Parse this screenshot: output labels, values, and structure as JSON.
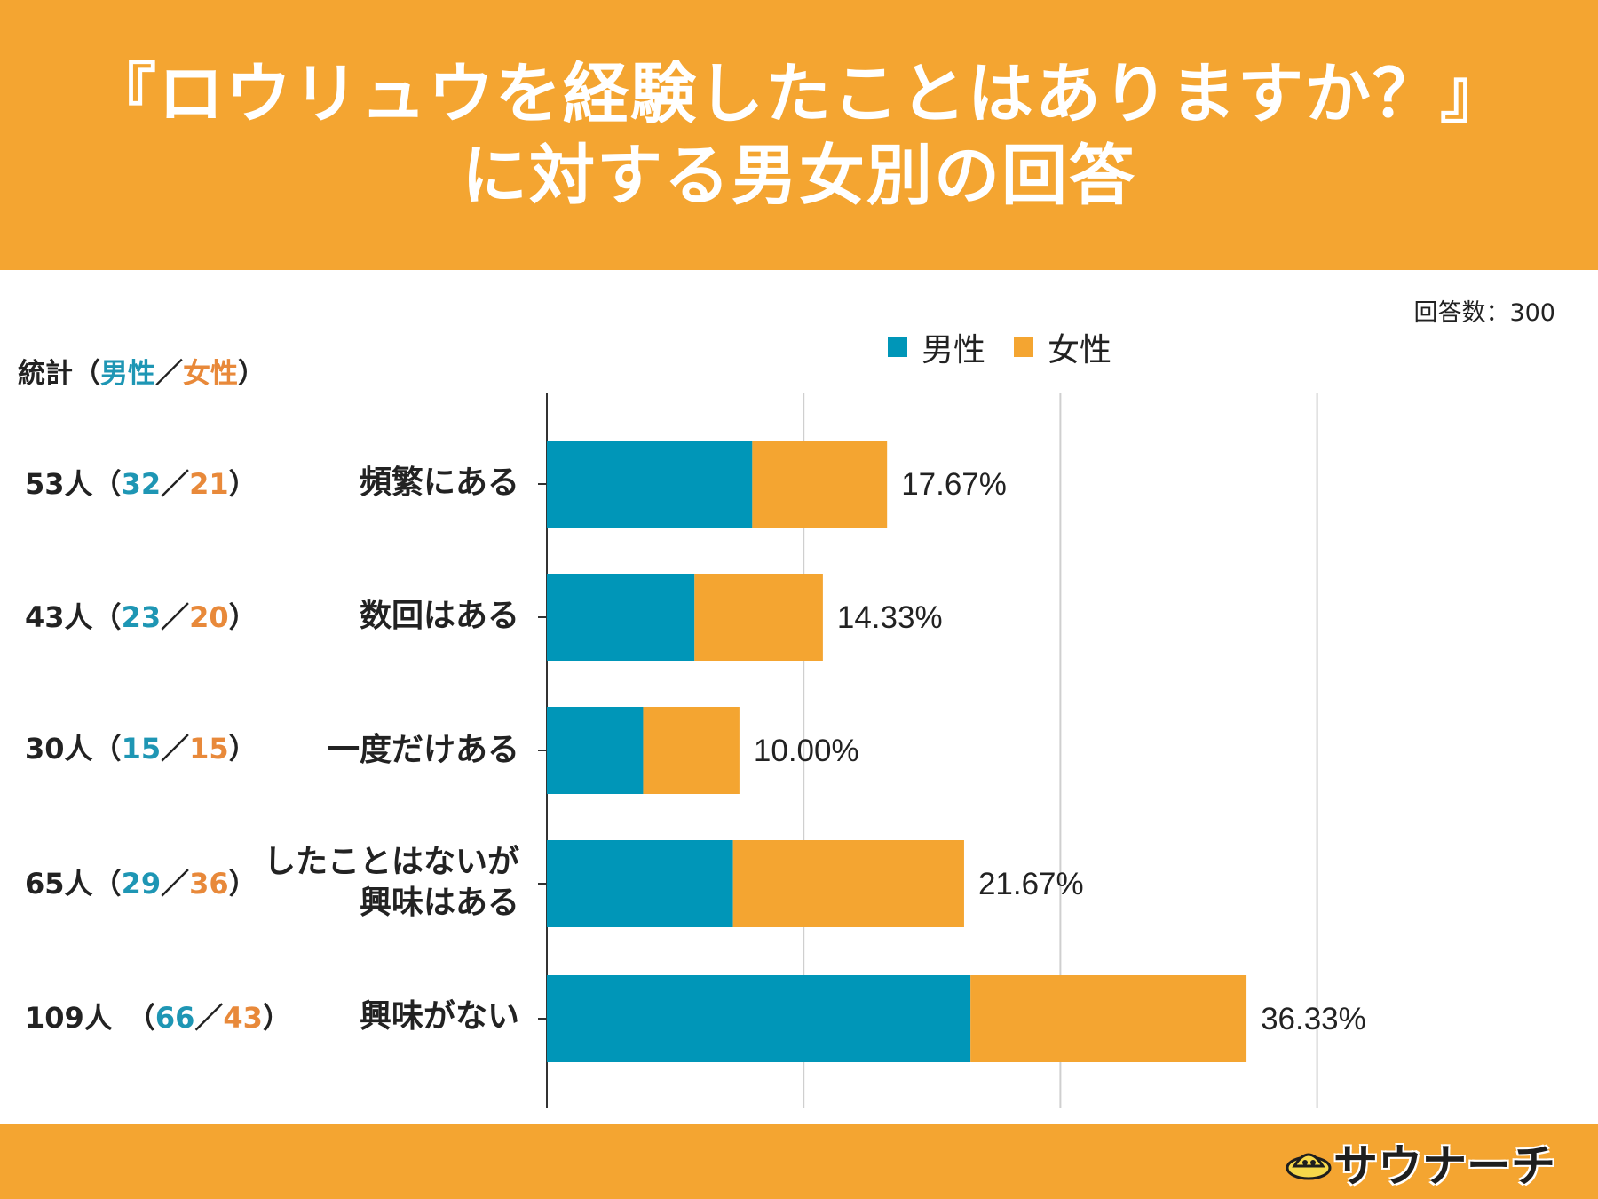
{
  "header": {
    "title_line1": "『ロウリュウを経験したことはありますか？』",
    "title_line2": "に対する男女別の回答"
  },
  "total_label": "回答数：300",
  "legend": {
    "male": "男性",
    "female": "女性"
  },
  "stats_header": {
    "prefix": "統計（",
    "male": "男性",
    "sep": "／",
    "female": "女性",
    "suffix": "）"
  },
  "stats": [
    {
      "total": "53人",
      "male": "32",
      "female": "21"
    },
    {
      "total": "43人",
      "male": "23",
      "female": "20"
    },
    {
      "total": "30人",
      "male": "15",
      "female": "15"
    },
    {
      "total": "65人",
      "male": "29",
      "female": "36"
    },
    {
      "total": "109人",
      "male": "66",
      "female": "43"
    }
  ],
  "logo": {
    "text": "サウナーチ"
  },
  "colors": {
    "male": "#0096B8",
    "female": "#F4A531",
    "header": "#F4A531"
  },
  "chart_data": {
    "type": "bar",
    "orientation": "horizontal",
    "stacked": true,
    "title": "『ロウリュウを経験したことはありますか？』に対する男女別の回答",
    "categories": [
      "頻繁にある",
      "数回はある",
      "一度だけある",
      "したことはないが\n興味はある",
      "興味がない"
    ],
    "series": [
      {
        "name": "男性",
        "values": [
          32,
          23,
          15,
          29,
          66
        ]
      },
      {
        "name": "女性",
        "values": [
          21,
          20,
          15,
          36,
          43
        ]
      }
    ],
    "labels": [
      "17.67%",
      "14.33%",
      "10.00%",
      "21.67%",
      "36.33%"
    ],
    "xlim": [
      0,
      120
    ],
    "grid": true,
    "legend_position": "top"
  }
}
